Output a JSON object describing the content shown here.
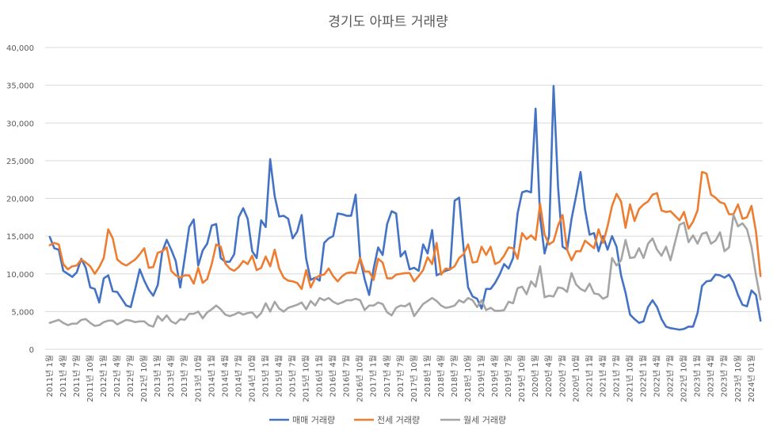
{
  "chart_data": {
    "type": "line",
    "title": "경기도 아파트 거래량",
    "xlabel": "",
    "ylabel": "",
    "ylim": [
      0,
      40000
    ],
    "y_ticks": [
      "0",
      "5,000",
      "10,000",
      "15,000",
      "20,000",
      "25,000",
      "30,000",
      "35,000",
      "40,000"
    ],
    "grid": "horizontal",
    "legend_position": "bottom",
    "x": [
      "2011년 1월",
      "2011년 2월",
      "2011년 3월",
      "2011년 4월",
      "2011년 5월",
      "2011년 6월",
      "2011년 7월",
      "2011년 8월",
      "2011년 9월",
      "2011년 10월",
      "2011년 11월",
      "2011년 12월",
      "2012년 1월",
      "2012년 2월",
      "2012년 3월",
      "2012년 4월",
      "2012년 5월",
      "2012년 6월",
      "2012년 7월",
      "2012년 8월",
      "2012년 9월",
      "2012년 10월",
      "2012년 11월",
      "2012년 12월",
      "2013년 1월",
      "2013년 2월",
      "2013년 3월",
      "2013년 4월",
      "2013년 5월",
      "2013년 6월",
      "2013년 7월",
      "2013년 8월",
      "2013년 9월",
      "2013년 10월",
      "2013년 11월",
      "2013년 12월",
      "2014년 1월",
      "2014년 2월",
      "2014년 3월",
      "2014년 4월",
      "2014년 5월",
      "2014년 6월",
      "2014년 7월",
      "2014년 8월",
      "2014년 9월",
      "2014년 10월",
      "2014년 11월",
      "2014년 12월",
      "2015년 1월",
      "2015년 2월",
      "2015년 3월",
      "2015년 4월",
      "2015년 5월",
      "2015년 6월",
      "2015년 7월",
      "2015년 8월",
      "2015년 9월",
      "2015년 10월",
      "2015년 11월",
      "2015년 12월",
      "2016년 1월",
      "2016년 2월",
      "2016년 3월",
      "2016년 4월",
      "2016년 5월",
      "2016년 6월",
      "2016년 7월",
      "2016년 8월",
      "2016년 9월",
      "2016년 10월",
      "2016년 11월",
      "2016년 12월",
      "2017년 1월",
      "2017년 2월",
      "2017년 3월",
      "2017년 4월",
      "2017년 5월",
      "2017년 6월",
      "2017년 7월",
      "2017년 8월",
      "2017년 9월",
      "2017년 10월",
      "2017년 11월",
      "2017년 12월",
      "2018년 1월",
      "2018년 2월",
      "2018년 3월",
      "2018년 4월",
      "2018년 5월",
      "2018년 6월",
      "2018년 7월",
      "2018년 8월",
      "2018년 9월",
      "2018년 10월",
      "2018년 11월",
      "2018년 12월",
      "2019년 1월",
      "2019년 2월",
      "2019년 3월",
      "2019년 4월",
      "2019년 5월",
      "2019년 6월",
      "2019년 7월",
      "2019년 8월",
      "2019년 9월",
      "2019년 10월",
      "2019년 11월",
      "2019년 12월",
      "2020년 1월",
      "2020년 2월",
      "2020년 3월",
      "2020년 4월",
      "2020년 5월",
      "2020년 6월",
      "2020년 7월",
      "2020년 8월",
      "2020년 9월",
      "2020년 10월",
      "2020년 11월",
      "2020년 12월",
      "2021년 1월",
      "2021년 2월",
      "2021년 3월",
      "2021년 4월",
      "2021년 5월",
      "2021년 6월",
      "2021년 7월",
      "2021년 8월",
      "2021년 9월",
      "2021년 10월",
      "2021년 11월",
      "2021년 12월",
      "2022년 1월",
      "2022년 2월",
      "2022년 3월",
      "2022년 4월",
      "2022년 5월",
      "2022년 6월",
      "2022년 7월",
      "2022년 8월",
      "2022년 9월",
      "2022년 10월",
      "2022년 11월",
      "2022년 12월",
      "2023년 1월",
      "2023년 2월",
      "2023년 3월",
      "2023년 4월",
      "2023년 5월",
      "2023년 6월",
      "2023년 7월",
      "2023년 8월",
      "2023년 9월",
      "2023년 10월",
      "2023년 11월",
      "2023년 12월",
      "2024년 1월",
      "2024년 2월",
      "2024년 3월"
    ],
    "x_tick_labels": [
      "2011년 1월",
      "2011년 4월",
      "2011년 7월",
      "2011년 10월",
      "2012년 1월",
      "2012년 4월",
      "2012년 7월",
      "2012년 10월",
      "2013년 1월",
      "2013년 4월",
      "2013년 7월",
      "2013년 10월",
      "2014년 1월",
      "2014년 4월",
      "2014년 7월",
      "2014년 10월",
      "2015년 1월",
      "2015년 4월",
      "2015년 7월",
      "2015년 10월",
      "2016년 1월",
      "2016년 4월",
      "2016년 7월",
      "2016년 10월",
      "2017년 1월",
      "2017년 4월",
      "2017년 7월",
      "2017년 10월",
      "2018년 1월",
      "2018년 4월",
      "2018년 7월",
      "2018년 10월",
      "2019년 1월",
      "2019년 4월",
      "2019년 7월",
      "2019년 10월",
      "2020년 1월",
      "2020년 4월",
      "2020년 7월",
      "2020년 10월",
      "2021년 1월",
      "2021년 4월",
      "2021년 7월",
      "2021년 10월",
      "2022년 1월",
      "2022년 4월",
      "2022년 7월",
      "2022년 10월",
      "2023년 1월",
      "2023년 4월",
      "2023년 7월",
      "2023년 10월",
      "2024년 01월"
    ],
    "series": [
      {
        "name": "매매 거래량",
        "color": "#4472C4",
        "values": [
          14900,
          13400,
          13200,
          10400,
          10000,
          9600,
          10200,
          12000,
          10800,
          8200,
          8000,
          6200,
          9400,
          9800,
          7700,
          7600,
          6700,
          5800,
          5600,
          8000,
          10600,
          9100,
          7900,
          7100,
          8500,
          12900,
          14500,
          13200,
          11700,
          8200,
          12100,
          16200,
          17200,
          11100,
          13100,
          14000,
          16400,
          16600,
          12100,
          11600,
          11600,
          12600,
          17500,
          18700,
          17300,
          13000,
          12100,
          17100,
          16200,
          25200,
          20300,
          17600,
          17700,
          17300,
          14700,
          15600,
          17800,
          12000,
          9200,
          9500,
          9100,
          14100,
          14700,
          15000,
          18000,
          17900,
          17700,
          17700,
          20500,
          12000,
          9300,
          7200,
          10700,
          13500,
          12500,
          16600,
          18300,
          18000,
          12300,
          13000,
          10600,
          10800,
          10400,
          13900,
          12700,
          15800,
          9800,
          10100,
          10400,
          10600,
          19700,
          20100,
          13300,
          8200,
          7000,
          6700,
          5400,
          8000,
          8000,
          8800,
          9900,
          11300,
          10700,
          12100,
          18000,
          20800,
          21000,
          20800,
          31900,
          17500,
          12700,
          15000,
          34900,
          21500,
          13600,
          13200,
          17300,
          20300,
          23500,
          18500,
          15200,
          15400,
          13000,
          15000,
          13200,
          15000,
          13600,
          9800,
          7500,
          4600,
          4000,
          3500,
          3700,
          5600,
          6500,
          5600,
          4000,
          3000,
          2800,
          2700,
          2600,
          2700,
          3000,
          3000,
          4800,
          8400,
          9000,
          9100,
          9900,
          9800,
          9500,
          9900,
          8900,
          7200,
          5900,
          5700,
          7800,
          7200,
          3800
        ]
      },
      {
        "name": "전세 거래량",
        "color": "#ED7D31",
        "values": [
          13800,
          14100,
          13900,
          11300,
          10600,
          11000,
          11100,
          11900,
          11500,
          11000,
          10000,
          10900,
          12100,
          15900,
          14700,
          11900,
          11400,
          11100,
          11500,
          11900,
          12600,
          13400,
          10800,
          10900,
          12800,
          13000,
          13500,
          10400,
          9800,
          9500,
          9800,
          9800,
          8700,
          10800,
          8800,
          9300,
          11300,
          13900,
          13600,
          11400,
          10700,
          10400,
          10900,
          11700,
          11300,
          12400,
          10500,
          10800,
          12300,
          11000,
          13200,
          10700,
          9500,
          9100,
          9000,
          8800,
          8000,
          10500,
          8200,
          9400,
          9800,
          9900,
          10700,
          9700,
          9000,
          9700,
          10100,
          10200,
          10100,
          12100,
          10300,
          10300,
          9200,
          12000,
          11500,
          9400,
          9400,
          9900,
          10000,
          10100,
          10100,
          9000,
          9700,
          10500,
          12200,
          11300,
          14100,
          9900,
          10700,
          10600,
          11000,
          12100,
          12600,
          13900,
          11500,
          11600,
          13600,
          12500,
          13600,
          11300,
          11600,
          12400,
          13500,
          13400,
          12000,
          15400,
          14600,
          15100,
          14500,
          19300,
          15200,
          13900,
          14300,
          16400,
          17800,
          13200,
          11800,
          13000,
          13000,
          14400,
          13900,
          13400,
          15900,
          14100,
          16300,
          19000,
          20600,
          19600,
          16100,
          19200,
          17000,
          18600,
          19200,
          19600,
          20500,
          20700,
          18400,
          18200,
          18300,
          17700,
          17100,
          18200,
          16000,
          16900,
          18400,
          23500,
          23300,
          20500,
          20100,
          19500,
          19300,
          17900,
          17900,
          19200,
          17300,
          17500,
          19000,
          15600,
          9700
        ]
      },
      {
        "name": "월세 거래량",
        "color": "#A5A5A5",
        "values": [
          3500,
          3700,
          3900,
          3500,
          3200,
          3400,
          3400,
          3900,
          4000,
          3500,
          3100,
          3200,
          3600,
          3800,
          3800,
          3300,
          3600,
          3900,
          3800,
          3600,
          3700,
          3700,
          3200,
          3000,
          4400,
          3800,
          4500,
          3700,
          3400,
          4000,
          3900,
          4700,
          4700,
          5000,
          4100,
          4900,
          5300,
          5800,
          5300,
          4600,
          4400,
          4600,
          4900,
          4600,
          4800,
          4900,
          4200,
          4800,
          6100,
          5000,
          6300,
          5400,
          5000,
          5500,
          5700,
          5900,
          6200,
          5300,
          6400,
          5800,
          6800,
          6500,
          6800,
          6300,
          6000,
          6200,
          6500,
          6500,
          6700,
          6500,
          5200,
          5800,
          5800,
          6200,
          6000,
          4900,
          4500,
          5500,
          5800,
          5700,
          6100,
          4400,
          5200,
          6000,
          6400,
          6800,
          6400,
          5800,
          5500,
          5600,
          5800,
          6500,
          6200,
          6800,
          6500,
          5600,
          6500,
          5200,
          5500,
          5100,
          5100,
          5200,
          6300,
          6100,
          8100,
          8300,
          7300,
          9000,
          8300,
          11000,
          6900,
          7100,
          7000,
          8200,
          8100,
          7600,
          10100,
          8600,
          8000,
          7700,
          8700,
          7400,
          7300,
          6700,
          7000,
          12100,
          11100,
          11800,
          14500,
          12100,
          12200,
          13400,
          12100,
          14000,
          14700,
          13200,
          12400,
          13600,
          11800,
          14200,
          16500,
          16800,
          14200,
          15100,
          14000,
          15300,
          15500,
          14000,
          14400,
          15500,
          13000,
          13500,
          17800,
          16300,
          16700,
          15900,
          13600,
          9800,
          6600
        ]
      }
    ]
  }
}
